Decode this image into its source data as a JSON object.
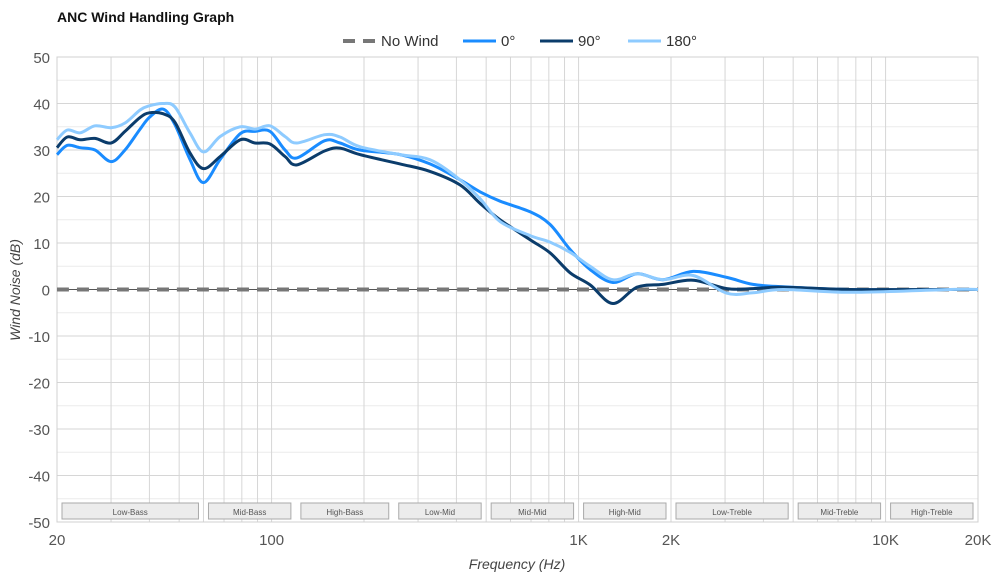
{
  "chart_data": {
    "type": "line",
    "title": "ANC Wind Handling Graph",
    "xlabel": "Frequency (Hz)",
    "ylabel": "Wind Noise (dB)",
    "xscale": "log",
    "xlim": [
      20,
      20000
    ],
    "ylim": [
      -50,
      50
    ],
    "yticks": [
      50,
      40,
      30,
      20,
      10,
      0,
      -10,
      -20,
      -30,
      -40,
      -50
    ],
    "xticks": [
      {
        "value": 20,
        "label": "20"
      },
      {
        "value": 100,
        "label": "100"
      },
      {
        "value": 1000,
        "label": "1K"
      },
      {
        "value": 2000,
        "label": "2K"
      },
      {
        "value": 10000,
        "label": "10K"
      },
      {
        "value": 20000,
        "label": "20K"
      }
    ],
    "x_gridlines": [
      30,
      40,
      50,
      60,
      70,
      80,
      90,
      100,
      200,
      300,
      400,
      500,
      600,
      700,
      800,
      900,
      1000,
      2000,
      3000,
      4000,
      5000,
      6000,
      7000,
      8000,
      9000,
      10000
    ],
    "grid": true,
    "legend_position": "top-center",
    "bands": [
      {
        "label": "Low-Bass",
        "from": 20,
        "to": 60
      },
      {
        "label": "Mid-Bass",
        "from": 60,
        "to": 120
      },
      {
        "label": "High-Bass",
        "from": 120,
        "to": 250
      },
      {
        "label": "Low-Mid",
        "from": 250,
        "to": 500
      },
      {
        "label": "Mid-Mid",
        "from": 500,
        "to": 1000
      },
      {
        "label": "High-Mid",
        "from": 1000,
        "to": 2000
      },
      {
        "label": "Low-Treble",
        "from": 2000,
        "to": 5000
      },
      {
        "label": "Mid-Treble",
        "from": 5000,
        "to": 10000
      },
      {
        "label": "High-Treble",
        "from": 10000,
        "to": 20000
      }
    ],
    "x": [
      20,
      21.6,
      23.8,
      26.6,
      30,
      33.3,
      37.3,
      40,
      44.3,
      48.4,
      54.2,
      60,
      68,
      79,
      88.3,
      98.8,
      110.6,
      121,
      149,
      167,
      194,
      262,
      328,
      411,
      478,
      555,
      695,
      807,
      938,
      1090,
      1294,
      1550,
      1884,
      2360,
      3040,
      3700,
      4640,
      7660,
      16200,
      20000
    ],
    "series": [
      {
        "name": "No Wind",
        "color": "#777777",
        "dashed": true,
        "values": [
          0,
          0,
          0,
          0,
          0,
          0,
          0,
          0,
          0,
          0,
          0,
          0,
          0,
          0,
          0,
          0,
          0,
          0,
          0,
          0,
          0,
          0,
          0,
          0,
          0,
          0,
          0,
          0,
          0,
          0,
          0,
          0,
          0,
          0,
          0,
          0,
          0,
          0,
          0,
          0
        ]
      },
      {
        "name": "0°",
        "color": "#1a8cff",
        "dashed": false,
        "values": [
          29,
          31,
          30.5,
          30,
          27.5,
          30,
          34.5,
          37,
          38.8,
          35.5,
          28,
          23,
          28,
          33.5,
          34,
          34,
          30,
          28.3,
          32,
          31.5,
          30,
          29,
          27,
          23.6,
          21,
          19,
          16.7,
          14,
          8.6,
          4.3,
          1.5,
          3.4,
          2.1,
          3.9,
          2.6,
          1.1,
          0.6,
          0,
          0,
          0
        ]
      },
      {
        "name": "90°",
        "color": "#0b3c6b",
        "dashed": false,
        "values": [
          30.5,
          32.8,
          32.2,
          32.5,
          31.5,
          34,
          37,
          38,
          37.8,
          36,
          29.4,
          26,
          28.6,
          32.2,
          31.5,
          31.3,
          28.6,
          26.8,
          29.8,
          30.4,
          29,
          27,
          25.4,
          22.5,
          18.5,
          15,
          10.7,
          7.9,
          3.6,
          1,
          -3,
          0.5,
          1.1,
          2,
          0.2,
          0.2,
          0.5,
          0,
          0,
          0
        ]
      },
      {
        "name": "180°",
        "color": "#8ecbff",
        "dashed": false,
        "values": [
          32.2,
          34.3,
          33.7,
          35.2,
          34.8,
          35.8,
          38.6,
          39.5,
          40,
          39.3,
          33.7,
          29.6,
          32.9,
          35,
          34.5,
          35.2,
          32.9,
          31.5,
          33.3,
          32.8,
          30.7,
          29,
          27.9,
          23.6,
          19.5,
          14.6,
          11.6,
          10.2,
          8,
          5,
          2.1,
          3.4,
          2.1,
          3,
          -0.8,
          -0.7,
          0,
          -0.6,
          0,
          0
        ]
      }
    ]
  }
}
